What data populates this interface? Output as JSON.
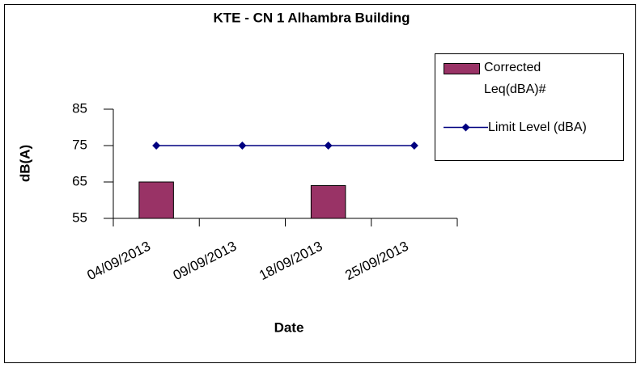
{
  "chart_data": {
    "type": "bar",
    "title": "KTE - CN 1 Alhambra Building",
    "categories": [
      "04/09/2013",
      "09/09/2013",
      "18/09/2013",
      "25/09/2013"
    ],
    "series": [
      {
        "name": "Corrected Leq(dBA)#",
        "type": "bar",
        "color": "#993366",
        "values": [
          65,
          null,
          64,
          null
        ]
      },
      {
        "name": "Limit Level (dBA)",
        "type": "line",
        "color": "#000080",
        "values": [
          75,
          75,
          75,
          75
        ]
      }
    ],
    "xlabel": "Date",
    "ylabel": "dB(A)",
    "ylim": [
      55,
      85
    ],
    "yticks": [
      55,
      65,
      75,
      85
    ],
    "grid": false,
    "legend": "right"
  }
}
